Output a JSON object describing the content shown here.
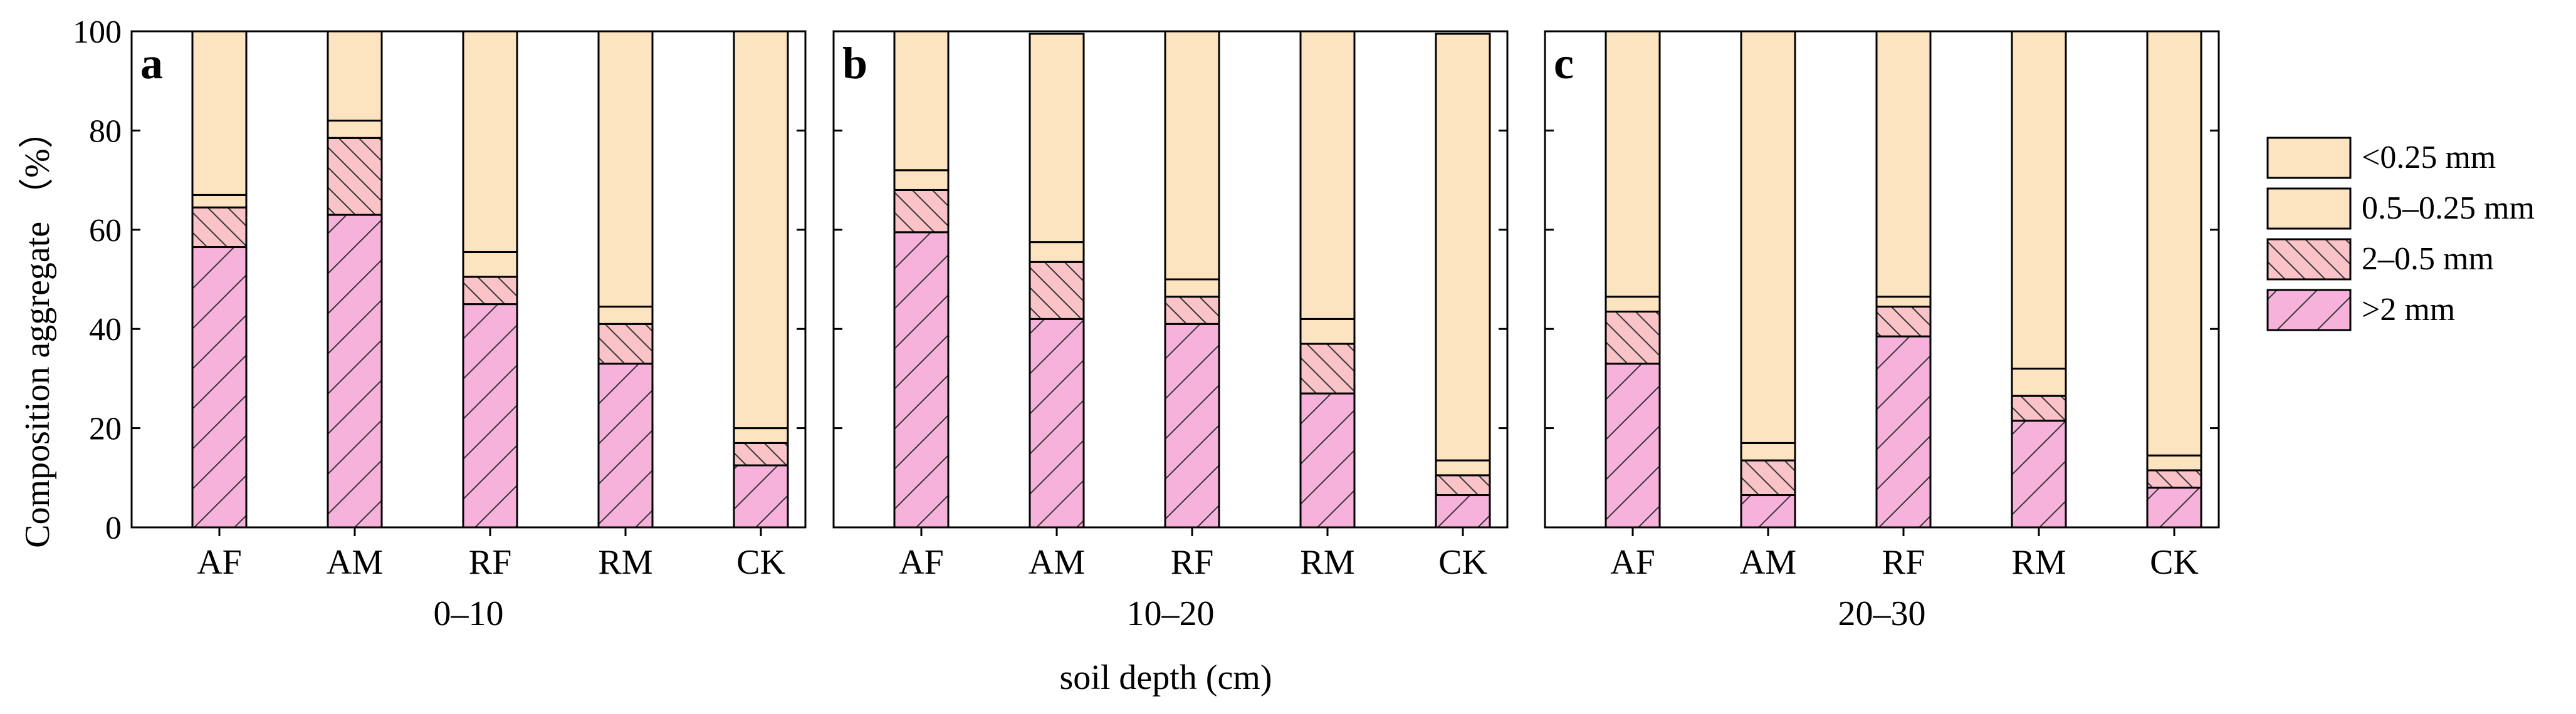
{
  "chart_data": {
    "type": "bar",
    "stacked": true,
    "ylabel": "Composition aggregate （%）",
    "xlabel": "soil depth (cm)",
    "ylim": [
      0,
      100
    ],
    "yticks": [
      "0",
      "20",
      "40",
      "60",
      "80",
      "100"
    ],
    "legend": {
      "position": "right",
      "entries": [
        {
          "name": "<0.25 mm",
          "color": "#fde4c1",
          "hatch": "none"
        },
        {
          "name": "0.5–0.25 mm",
          "color": "#fde4c1",
          "hatch": "none"
        },
        {
          "name": "2–0.5 mm",
          "color": "#f9c3c8",
          "hatch": "backslash"
        },
        {
          "name": ">2 mm",
          "color": "#f7b2dc",
          "hatch": "slash"
        }
      ]
    },
    "series_order": [
      ">2 mm",
      "2–0.5 mm",
      "0.5–0.25 mm",
      "<0.25 mm"
    ],
    "panels": [
      {
        "letter": "a",
        "depth": "0–10",
        "categories": [
          "AF",
          "AM",
          "RF",
          "RM",
          "CK"
        ],
        "series": [
          {
            "name": ">2 mm",
            "values": [
              56.5,
              63,
              45,
              33,
              12.5
            ]
          },
          {
            "name": "2–0.5 mm",
            "values": [
              8,
              15.5,
              5.5,
              8,
              4.5
            ]
          },
          {
            "name": "0.5–0.25 mm",
            "values": [
              2.5,
              3.5,
              5,
              3.5,
              3
            ]
          },
          {
            "name": "<0.25 mm",
            "values": [
              33,
              18,
              44.5,
              55.5,
              80
            ]
          }
        ]
      },
      {
        "letter": "b",
        "depth": "10–20",
        "categories": [
          "AF",
          "AM",
          "RF",
          "RM",
          "CK"
        ],
        "series": [
          {
            "name": ">2 mm",
            "values": [
              59.5,
              42,
              41,
              27,
              6.5
            ]
          },
          {
            "name": "2–0.5 mm",
            "values": [
              8.5,
              11.5,
              5.5,
              10,
              4
            ]
          },
          {
            "name": "0.5–0.25 mm",
            "values": [
              4,
              4,
              3.5,
              5,
              3
            ]
          },
          {
            "name": "<0.25 mm",
            "values": [
              28,
              42,
              50,
              58,
              86
            ]
          }
        ]
      },
      {
        "letter": "c",
        "depth": "20–30",
        "categories": [
          "AF",
          "AM",
          "RF",
          "RM",
          "CK"
        ],
        "series": [
          {
            "name": ">2 mm",
            "values": [
              33,
              6.5,
              38.5,
              21.5,
              8
            ]
          },
          {
            "name": "2–0.5 mm",
            "values": [
              10.5,
              7,
              6,
              5,
              3.5
            ]
          },
          {
            "name": "0.5–0.25 mm",
            "values": [
              3,
              3.5,
              2,
              5.5,
              3
            ]
          },
          {
            "name": "<0.25 mm",
            "values": [
              53.5,
              83,
              53.5,
              68,
              85.5
            ]
          }
        ]
      }
    ]
  }
}
